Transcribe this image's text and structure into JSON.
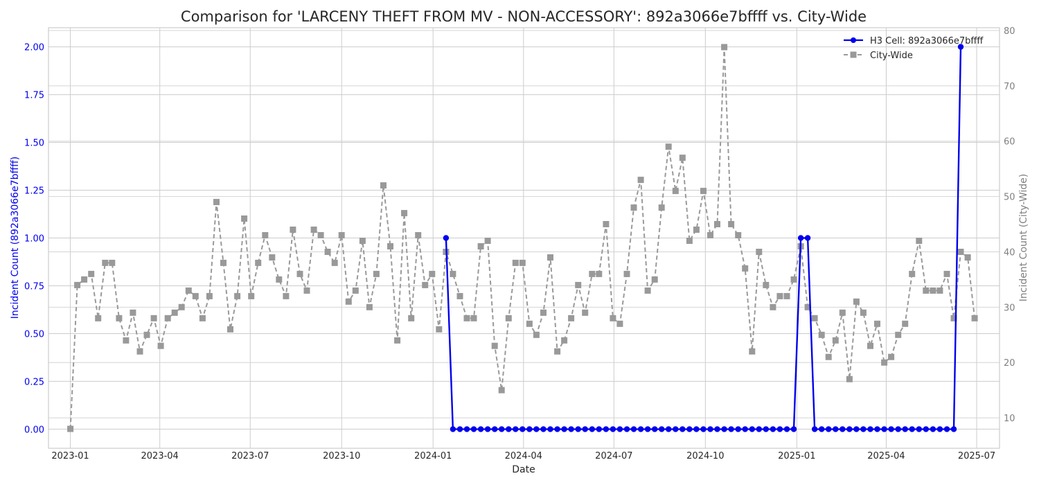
{
  "chart_data": {
    "type": "line",
    "title": "Comparison for 'LARCENY THEFT FROM MV - NON-ACCESSORY': 892a3066e7bffff vs. City-Wide",
    "xlabel": "Date",
    "ylabel_left": "Incident Count (892a3066e7bffff)",
    "ylabel_right": "Incident Count (City-Wide)",
    "x_start": "2023-01-01",
    "x_step_days": 7,
    "xlim": [
      "2022-12-10",
      "2025-07-24"
    ],
    "x_ticks": [
      {
        "date": "2023-01-01",
        "label": "2023-01"
      },
      {
        "date": "2023-04-01",
        "label": "2023-04"
      },
      {
        "date": "2023-07-01",
        "label": "2023-07"
      },
      {
        "date": "2023-10-01",
        "label": "2023-10"
      },
      {
        "date": "2024-01-01",
        "label": "2024-01"
      },
      {
        "date": "2024-04-01",
        "label": "2024-04"
      },
      {
        "date": "2024-07-01",
        "label": "2024-07"
      },
      {
        "date": "2024-10-01",
        "label": "2024-10"
      },
      {
        "date": "2025-01-01",
        "label": "2025-01"
      },
      {
        "date": "2025-04-01",
        "label": "2025-04"
      },
      {
        "date": "2025-07-01",
        "label": "2025-07"
      }
    ],
    "ylim_left": [
      -0.1,
      2.1
    ],
    "ylim_right": [
      4.5,
      80.5
    ],
    "yticks_left": [
      "0.00",
      "0.25",
      "0.50",
      "0.75",
      "1.00",
      "1.25",
      "1.50",
      "1.75",
      "2.00"
    ],
    "yticks_right": [
      "10",
      "20",
      "30",
      "40",
      "50",
      "60",
      "70",
      "80"
    ],
    "grid": true,
    "legend_position": "top-right",
    "colors": {
      "h3": "#0000ee",
      "city": "#999999",
      "left_axis_text": "#0000ee",
      "right_axis_text": "#808080"
    },
    "series": [
      {
        "name": "H3 Cell: 892a3066e7bffff",
        "axis": "left",
        "style": "solid-circle",
        "x_start": "2024-01-14",
        "values": [
          1,
          0,
          0,
          0,
          0,
          0,
          0,
          0,
          0,
          0,
          0,
          0,
          0,
          0,
          0,
          0,
          0,
          0,
          0,
          0,
          0,
          0,
          0,
          0,
          0,
          0,
          0,
          0,
          0,
          0,
          0,
          0,
          0,
          0,
          0,
          0,
          0,
          0,
          0,
          0,
          0,
          0,
          0,
          0,
          0,
          0,
          0,
          0,
          0,
          0,
          0,
          1,
          1,
          0,
          0,
          0,
          0,
          0,
          0,
          0,
          0,
          0,
          0,
          0,
          0,
          0,
          0,
          0,
          0,
          0,
          0,
          0,
          0,
          0,
          2
        ]
      },
      {
        "name": "City-Wide",
        "axis": "right",
        "style": "dashed-square",
        "x_start": "2023-01-01",
        "values": [
          8,
          34,
          35,
          36,
          28,
          38,
          38,
          28,
          24,
          29,
          22,
          25,
          28,
          23,
          28,
          29,
          30,
          33,
          32,
          28,
          32,
          49,
          38,
          26,
          32,
          46,
          32,
          38,
          43,
          39,
          35,
          32,
          44,
          36,
          33,
          44,
          43,
          40,
          38,
          43,
          31,
          33,
          42,
          30,
          36,
          52,
          41,
          24,
          47,
          28,
          43,
          34,
          36,
          26,
          40,
          36,
          32,
          28,
          28,
          41,
          42,
          23,
          15,
          28,
          38,
          38,
          27,
          25,
          29,
          39,
          22,
          24,
          28,
          34,
          29,
          36,
          36,
          45,
          28,
          27,
          36,
          48,
          53,
          33,
          35,
          48,
          59,
          51,
          57,
          42,
          44,
          51,
          43,
          45,
          77,
          45,
          43,
          37,
          22,
          40,
          34,
          30,
          32,
          32,
          35,
          41,
          30,
          28,
          25,
          21,
          24,
          29,
          17,
          31,
          29,
          23,
          27,
          20,
          21,
          25,
          27,
          36,
          42,
          33,
          33,
          33,
          36,
          28,
          40,
          39,
          28
        ]
      }
    ]
  }
}
